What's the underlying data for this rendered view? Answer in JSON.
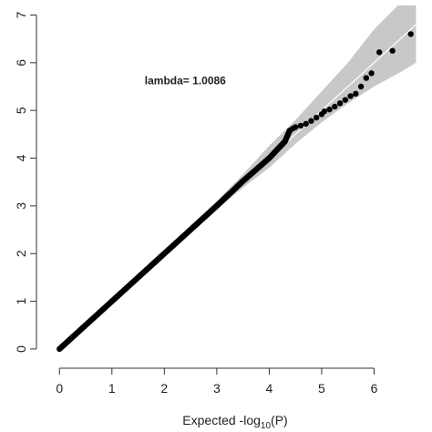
{
  "chart_data": {
    "type": "scatter",
    "title": "",
    "xlabel": "Expected  -log10(P)",
    "ylabel": "",
    "xlim": [
      -0.3,
      7.0
    ],
    "ylim": [
      -0.25,
      7.2
    ],
    "grid": false,
    "legend": "none",
    "x_ticks": [
      0,
      1,
      2,
      3,
      4,
      5,
      6
    ],
    "y_ticks": [
      0,
      1,
      2,
      3,
      4,
      5,
      6,
      7
    ],
    "annotation": "lambda= 1.0086",
    "colors": {
      "points": "#000000",
      "band": "#c8c8c8",
      "reference_line": "#ffffff",
      "axes": "#333333"
    },
    "main_trend": [
      [
        0,
        0
      ],
      [
        1,
        1.0
      ],
      [
        2,
        2.0
      ],
      [
        3,
        3.0
      ],
      [
        3.5,
        3.52
      ],
      [
        4,
        4.0
      ],
      [
        4.3,
        4.35
      ],
      [
        4.4,
        4.6
      ]
    ],
    "points": [
      [
        4.45,
        4.62
      ],
      [
        4.5,
        4.65
      ],
      [
        4.6,
        4.68
      ],
      [
        4.7,
        4.72
      ],
      [
        4.8,
        4.78
      ],
      [
        4.9,
        4.85
      ],
      [
        5.0,
        4.92
      ],
      [
        5.05,
        4.98
      ],
      [
        5.15,
        5.02
      ],
      [
        5.25,
        5.08
      ],
      [
        5.35,
        5.15
      ],
      [
        5.45,
        5.22
      ],
      [
        5.55,
        5.3
      ],
      [
        5.65,
        5.35
      ],
      [
        5.75,
        5.5
      ],
      [
        5.85,
        5.68
      ],
      [
        5.95,
        5.78
      ],
      [
        6.1,
        6.22
      ],
      [
        6.35,
        6.25
      ],
      [
        6.7,
        6.6
      ]
    ],
    "confidence_band": {
      "upper": [
        [
          0,
          0
        ],
        [
          3,
          3.1
        ],
        [
          3.5,
          3.66
        ],
        [
          4,
          4.26
        ],
        [
          4.5,
          4.8
        ],
        [
          5,
          5.4
        ],
        [
          5.5,
          6.0
        ],
        [
          6,
          6.7
        ],
        [
          6.5,
          7.25
        ],
        [
          6.8,
          7.25
        ]
      ],
      "lower": [
        [
          0,
          0
        ],
        [
          3,
          2.92
        ],
        [
          3.5,
          3.38
        ],
        [
          4,
          3.8
        ],
        [
          4.5,
          4.3
        ],
        [
          5,
          4.75
        ],
        [
          5.5,
          5.15
        ],
        [
          6,
          5.5
        ],
        [
          6.5,
          5.8
        ],
        [
          6.8,
          6.0
        ]
      ]
    }
  }
}
